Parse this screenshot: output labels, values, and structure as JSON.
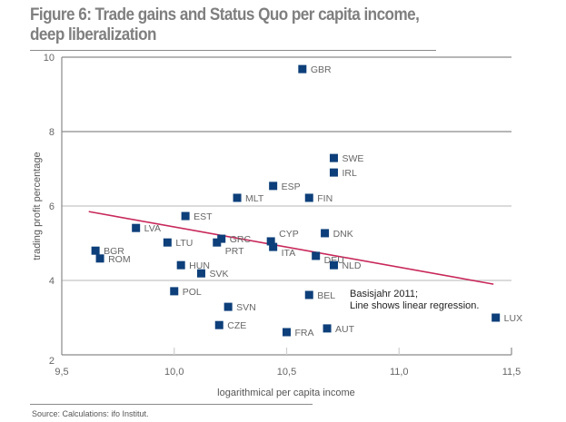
{
  "figure": {
    "title": "Figure 6: Trade gains and Status Quo per capita income, deep liberalization",
    "source": "Source: Calculations: ifo Institut."
  },
  "colors": {
    "marker": "#0d3f7a",
    "regression": "#c8285a",
    "title": "#7f7f7f"
  },
  "chart_data": {
    "type": "scatter",
    "title": "Trade gains and Status Quo per capita income, deep liberalization",
    "xlabel": "logarithmical per capita income",
    "ylabel": "trading profit percentage",
    "xlim": [
      9.5,
      11.5
    ],
    "ylim": [
      2,
      10
    ],
    "xticks": [
      9.5,
      10.0,
      10.5,
      11.0,
      11.5
    ],
    "xtick_labels": [
      "9,5",
      "10,0",
      "10,5",
      "11,0",
      "11,5"
    ],
    "yticks": [
      2,
      4,
      6,
      8,
      10
    ],
    "ytick_labels": [
      "2",
      "4",
      "6",
      "8",
      "10"
    ],
    "grid": "horizontal",
    "annotation": [
      "Basisjahr 2011;",
      "Line shows linear regression."
    ],
    "points": [
      {
        "label": "GBR",
        "x": 10.57,
        "y": 9.68
      },
      {
        "label": "SWE",
        "x": 10.71,
        "y": 7.29
      },
      {
        "label": "IRL",
        "x": 10.71,
        "y": 6.9
      },
      {
        "label": "ESP",
        "x": 10.44,
        "y": 6.54
      },
      {
        "label": "MLT",
        "x": 10.28,
        "y": 6.22
      },
      {
        "label": "FIN",
        "x": 10.6,
        "y": 6.22
      },
      {
        "label": "EST",
        "x": 10.05,
        "y": 5.73
      },
      {
        "label": "LVA",
        "x": 9.83,
        "y": 5.41
      },
      {
        "label": "DNK",
        "x": 10.67,
        "y": 5.27
      },
      {
        "label": "GRC",
        "x": 10.21,
        "y": 5.12
      },
      {
        "label": "CYP",
        "x": 10.43,
        "y": 5.05
      },
      {
        "label": "PRT",
        "x": 10.19,
        "y": 5.02
      },
      {
        "label": "LTU",
        "x": 9.97,
        "y": 5.02
      },
      {
        "label": "ITA",
        "x": 10.44,
        "y": 4.9
      },
      {
        "label": "BGR",
        "x": 9.65,
        "y": 4.8
      },
      {
        "label": "DEU",
        "x": 10.63,
        "y": 4.66
      },
      {
        "label": "ROM",
        "x": 9.67,
        "y": 4.59
      },
      {
        "label": "HUN",
        "x": 10.03,
        "y": 4.41
      },
      {
        "label": "NLD",
        "x": 10.71,
        "y": 4.41
      },
      {
        "label": "SVK",
        "x": 10.12,
        "y": 4.19
      },
      {
        "label": "POL",
        "x": 10.0,
        "y": 3.71
      },
      {
        "label": "BEL",
        "x": 10.6,
        "y": 3.61
      },
      {
        "label": "SVN",
        "x": 10.24,
        "y": 3.29
      },
      {
        "label": "LUX",
        "x": 11.43,
        "y": 3.0
      },
      {
        "label": "CZE",
        "x": 10.2,
        "y": 2.8
      },
      {
        "label": "AUT",
        "x": 10.68,
        "y": 2.71
      },
      {
        "label": "FRA",
        "x": 10.5,
        "y": 2.61
      }
    ],
    "regression": {
      "x": [
        9.62,
        11.42
      ],
      "y": [
        5.85,
        3.9
      ]
    }
  }
}
